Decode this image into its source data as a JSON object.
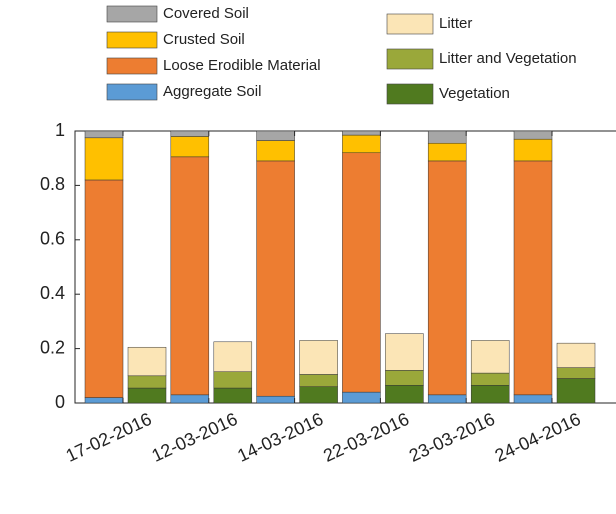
{
  "chart_data": {
    "type": "stacked-bar",
    "categories": [
      "17-02-2016",
      "12-03-2016",
      "14-03-2016",
      "22-03-2016",
      "23-03-2016",
      "24-04-2016"
    ],
    "series": [
      {
        "name": "Covered Soil",
        "color": "#a6a6a6",
        "stack": "left",
        "values": [
          0.025,
          0.02,
          0.035,
          0.015,
          0.045,
          0.03
        ]
      },
      {
        "name": "Crusted Soil",
        "color": "#ffc000",
        "stack": "left",
        "values": [
          0.155,
          0.075,
          0.075,
          0.065,
          0.065,
          0.08
        ]
      },
      {
        "name": "Loose Erodible Material",
        "color": "#ed7d31",
        "stack": "left",
        "values": [
          0.8,
          0.875,
          0.865,
          0.88,
          0.86,
          0.86
        ]
      },
      {
        "name": "Aggregate Soil",
        "color": "#5b9bd5",
        "stack": "left",
        "values": [
          0.02,
          0.03,
          0.025,
          0.04,
          0.03,
          0.03
        ]
      },
      {
        "name": "Litter",
        "color": "#fbe5b6",
        "stack": "right",
        "values": [
          0.105,
          0.11,
          0.125,
          0.135,
          0.12,
          0.09
        ]
      },
      {
        "name": "Litter and Vegetation",
        "color": "#9aa83a",
        "stack": "right",
        "values": [
          0.045,
          0.06,
          0.045,
          0.055,
          0.045,
          0.04
        ]
      },
      {
        "name": "Vegetation",
        "color": "#507a1f",
        "stack": "right",
        "values": [
          0.055,
          0.055,
          0.06,
          0.065,
          0.065,
          0.09
        ]
      }
    ],
    "ylim": [
      0,
      1
    ],
    "yticks": [
      0,
      0.2,
      0.4,
      0.6,
      0.8,
      1
    ]
  }
}
